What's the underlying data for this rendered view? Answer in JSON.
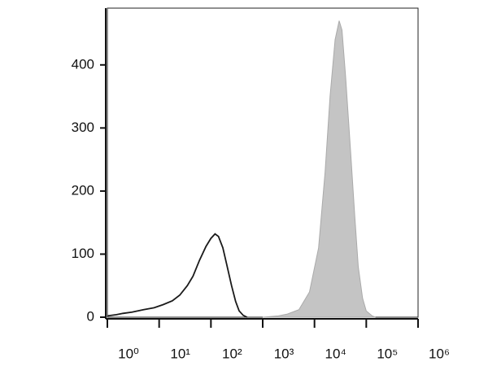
{
  "chart_data": {
    "type": "histogram-overlay",
    "xscale": "log",
    "xlim": [
      1,
      1000000
    ],
    "ylim": [
      0,
      490
    ],
    "xticks": [
      {
        "value": 1,
        "label": "10⁰"
      },
      {
        "value": 10,
        "label": "10¹"
      },
      {
        "value": 100,
        "label": "10²"
      },
      {
        "value": 1000,
        "label": "10³"
      },
      {
        "value": 10000,
        "label": "10⁴"
      },
      {
        "value": 100000,
        "label": "10⁵"
      },
      {
        "value": 1000000,
        "label": "10⁶"
      }
    ],
    "yticks": [
      0,
      100,
      200,
      300,
      400
    ],
    "series": [
      {
        "color": "#c4c4c4",
        "filled": true,
        "x": [
          1000,
          2000,
          3000,
          5000,
          8000,
          12000,
          16000,
          20000,
          25000,
          30000,
          34000,
          40000,
          50000,
          60000,
          70000,
          85000,
          100000,
          130000,
          150000
        ],
        "values": [
          0,
          2,
          5,
          12,
          40,
          110,
          230,
          350,
          440,
          470,
          455,
          380,
          260,
          160,
          80,
          30,
          10,
          2,
          0
        ]
      },
      {
        "color": "#1a1a1a",
        "filled": false,
        "x": [
          1,
          1.5,
          2,
          3,
          5,
          8,
          12,
          18,
          25,
          35,
          45,
          60,
          80,
          100,
          120,
          140,
          170,
          200,
          250,
          300,
          350,
          420,
          500
        ],
        "values": [
          2,
          4,
          6,
          8,
          12,
          15,
          20,
          26,
          35,
          50,
          65,
          90,
          112,
          125,
          132,
          128,
          110,
          85,
          50,
          25,
          10,
          3,
          0
        ]
      }
    ]
  }
}
